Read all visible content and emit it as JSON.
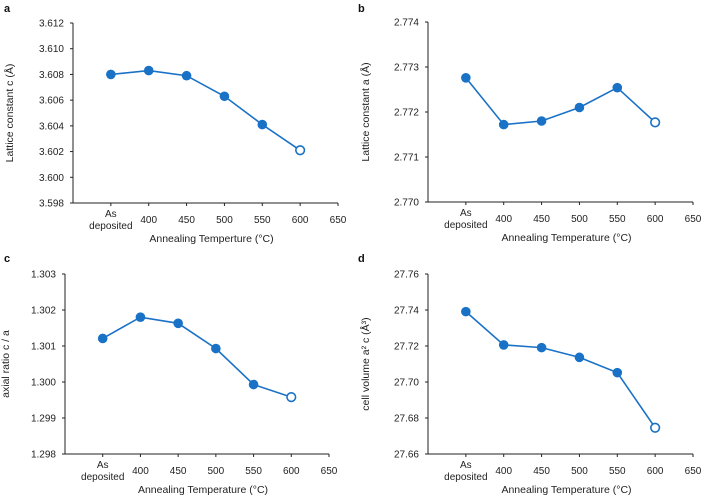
{
  "chart_data": [
    {
      "type": "line",
      "panel_label": "a",
      "title": "",
      "xlabel": "Annealing Temperture (°C)",
      "ylabel": "Lattice constant c (Å)",
      "categories": [
        "As deposited",
        "400",
        "450",
        "500",
        "550",
        "600"
      ],
      "x_tick_labels": [
        "As",
        "deposited",
        "400",
        "450",
        "500",
        "550",
        "600",
        "650"
      ],
      "values": [
        3.608,
        3.6083,
        3.6079,
        3.6063,
        3.6041,
        3.6021
      ],
      "open_marker_last": true,
      "ylim": [
        3.598,
        3.612
      ],
      "yticks": [
        "3.598",
        "3.600",
        "3.602",
        "3.604",
        "3.606",
        "3.608",
        "3.610",
        "3.612"
      ],
      "grid": false
    },
    {
      "type": "line",
      "panel_label": "b",
      "title": "",
      "xlabel": "Annealing Temperature (°C)",
      "ylabel": "Lattice constant a (Å)",
      "categories": [
        "As deposited",
        "400",
        "450",
        "500",
        "550",
        "600"
      ],
      "x_tick_labels": [
        "As",
        "deposited",
        "400",
        "450",
        "500",
        "550",
        "600",
        "650"
      ],
      "values": [
        2.77276,
        2.77172,
        2.7718,
        2.7721,
        2.77254,
        2.77177
      ],
      "open_marker_last": true,
      "ylim": [
        2.77,
        2.774
      ],
      "yticks": [
        "2.770",
        "2.771",
        "2.772",
        "2.773",
        "2.774"
      ],
      "grid": false
    },
    {
      "type": "line",
      "panel_label": "c",
      "title": "",
      "xlabel": "Annealing Temperature (°C)",
      "ylabel": "axial ratio c / a",
      "categories": [
        "As deposited",
        "400",
        "450",
        "500",
        "550",
        "600"
      ],
      "x_tick_labels": [
        "As",
        "deposited",
        "400",
        "450",
        "500",
        "550",
        "600",
        "650"
      ],
      "values": [
        1.30121,
        1.3018,
        1.30163,
        1.30093,
        1.29993,
        1.29958
      ],
      "open_marker_last": true,
      "ylim": [
        1.298,
        1.303
      ],
      "yticks": [
        "1.298",
        "1.299",
        "1.300",
        "1.301",
        "1.302",
        "1.303"
      ],
      "grid": false
    },
    {
      "type": "line",
      "panel_label": "d",
      "title": "",
      "xlabel": "Annealing Temperature (°C)",
      "ylabel": "cell volume a² c (Å³)",
      "categories": [
        "As deposited",
        "400",
        "450",
        "500",
        "550",
        "600"
      ],
      "x_tick_labels": [
        "As",
        "deposited",
        "400",
        "450",
        "500",
        "550",
        "600",
        "650"
      ],
      "values": [
        27.7391,
        27.7206,
        27.7191,
        27.7137,
        27.7052,
        27.6746
      ],
      "open_marker_last": true,
      "ylim": [
        27.66,
        27.76
      ],
      "yticks": [
        "27.66",
        "27.68",
        "27.70",
        "27.72",
        "27.74",
        "27.76"
      ],
      "grid": false
    }
  ],
  "colors": {
    "series": "#1a72c6",
    "axis": "#222222"
  }
}
